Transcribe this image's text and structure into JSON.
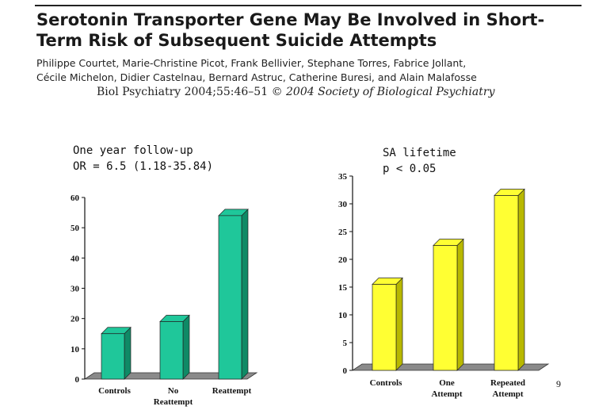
{
  "paper": {
    "title_line1": "Serotonin Transporter Gene May Be Involved in Short-",
    "title_line2": "Term Risk of Subsequent Suicide Attempts",
    "authors_line1": "Philippe Courtet, Marie-Christine Picot, Frank Bellivier, Stephane Torres, Fabrice Jollant,",
    "authors_line2": "Cécile Michelon, Didier Castelnau, Bernard Astruc, Catherine Buresi, and Alain Malafosse",
    "citation": "Biol Psychiatry 2004;55:46–51 ",
    "copyright": "© 2004 Society of Biological Psychiatry"
  },
  "page_number": "9",
  "colors": {
    "left_bar": "#1fc79a",
    "left_bar_dark": "#0f8a66",
    "right_bar": "#ffff33",
    "right_bar_dark": "#b8b800",
    "floor": "#8a8a8a"
  },
  "chart_data": [
    {
      "type": "bar",
      "annotation_line1": "One year follow-up",
      "annotation_line2": "OR = 6.5 (1.18-35.84)",
      "categories": [
        [
          "Controls"
        ],
        [
          "No",
          "Reattempt"
        ],
        [
          "Reattempt"
        ]
      ],
      "values": [
        15,
        19,
        54
      ],
      "ylim": [
        0,
        60
      ],
      "yticks": [
        0,
        10,
        20,
        30,
        40,
        50,
        60
      ],
      "grid": false
    },
    {
      "type": "bar",
      "annotation_line1": "SA lifetime",
      "annotation_line2": "p < 0.05",
      "categories": [
        [
          "Controls"
        ],
        [
          "One",
          "Attempt"
        ],
        [
          "Repeated",
          "Attempt"
        ]
      ],
      "values": [
        15.5,
        22.5,
        31.5
      ],
      "ylim": [
        0,
        35
      ],
      "yticks": [
        0,
        5,
        10,
        15,
        20,
        25,
        30,
        35
      ],
      "grid": false
    }
  ]
}
